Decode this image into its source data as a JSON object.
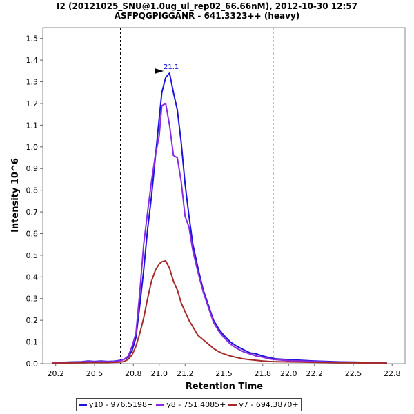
{
  "chart_data": {
    "type": "line",
    "title_line1": "I2 (20121025_SNU@1.0ug_ul_rep02_66.66nM), 2012-10-30 12:57",
    "title_line2": "ASFPQGPIGGANR - 641.3323++ (heavy)",
    "xlabel": "Retention Time",
    "ylabel": "Intensity 10^6",
    "xlim": [
      20.1,
      22.9
    ],
    "ylim": [
      0.0,
      1.55
    ],
    "xticks": [
      20.2,
      20.5,
      20.8,
      21.0,
      21.2,
      21.5,
      21.8,
      22.0,
      22.2,
      22.5,
      22.8
    ],
    "xtick_labels": [
      "20.2",
      "20.5",
      "20.8",
      "21.0",
      "21.2",
      "21.5",
      "21.8",
      "22.0",
      "22.2",
      "22.5",
      "22.8"
    ],
    "yticks": [
      0.0,
      0.1,
      0.2,
      0.3,
      0.4,
      0.5,
      0.6,
      0.7,
      0.8,
      0.9,
      1.0,
      1.1,
      1.2,
      1.3,
      1.4,
      1.5
    ],
    "ytick_labels": [
      "0.0",
      "0.1",
      "0.2",
      "0.3",
      "0.4",
      "0.5",
      "0.6",
      "0.7",
      "0.8",
      "0.9",
      "1.0",
      "1.1",
      "1.2",
      "1.3",
      "1.4",
      "1.5"
    ],
    "integration_boundaries": [
      20.7,
      21.88
    ],
    "peak_annotation": {
      "text": "21.1",
      "x": 21.05,
      "y": 1.34,
      "color": "#0000cc"
    },
    "legend_position": "bottom-center",
    "series": [
      {
        "name": "y10 - 976.5198+",
        "color": "#1c13dc",
        "x": [
          20.17,
          20.25,
          20.3,
          20.35,
          20.4,
          20.45,
          20.5,
          20.55,
          20.6,
          20.65,
          20.7,
          20.73,
          20.76,
          20.79,
          20.82,
          20.85,
          20.88,
          20.91,
          20.94,
          20.97,
          21.0,
          21.02,
          21.05,
          21.08,
          21.11,
          21.14,
          21.17,
          21.2,
          21.23,
          21.26,
          21.3,
          21.34,
          21.38,
          21.42,
          21.46,
          21.5,
          21.55,
          21.6,
          21.65,
          21.7,
          21.75,
          21.8,
          21.85,
          21.9,
          22.0,
          22.1,
          22.2,
          22.3,
          22.4,
          22.5,
          22.6,
          22.7,
          22.76
        ],
        "values": [
          0.005,
          0.006,
          0.007,
          0.008,
          0.009,
          0.012,
          0.01,
          0.012,
          0.01,
          0.011,
          0.015,
          0.02,
          0.03,
          0.06,
          0.12,
          0.27,
          0.43,
          0.62,
          0.77,
          0.95,
          1.13,
          1.25,
          1.32,
          1.34,
          1.25,
          1.17,
          1.02,
          0.83,
          0.68,
          0.55,
          0.44,
          0.34,
          0.27,
          0.2,
          0.16,
          0.13,
          0.1,
          0.08,
          0.065,
          0.05,
          0.045,
          0.035,
          0.028,
          0.022,
          0.018,
          0.015,
          0.012,
          0.01,
          0.008,
          0.007,
          0.006,
          0.005,
          0.005
        ]
      },
      {
        "name": "y8 - 751.4085+",
        "color": "#8a2be2",
        "x": [
          20.17,
          20.25,
          20.3,
          20.35,
          20.4,
          20.45,
          20.5,
          20.55,
          20.6,
          20.65,
          20.7,
          20.73,
          20.76,
          20.79,
          20.82,
          20.85,
          20.88,
          20.91,
          20.94,
          20.97,
          21.0,
          21.02,
          21.05,
          21.08,
          21.11,
          21.14,
          21.17,
          21.2,
          21.23,
          21.26,
          21.3,
          21.34,
          21.38,
          21.42,
          21.46,
          21.5,
          21.55,
          21.6,
          21.65,
          21.7,
          21.75,
          21.8,
          21.85,
          21.9,
          22.0,
          22.1,
          22.2,
          22.3,
          22.4,
          22.5,
          22.6,
          22.7,
          22.76
        ],
        "values": [
          0.004,
          0.005,
          0.006,
          0.007,
          0.008,
          0.01,
          0.009,
          0.01,
          0.009,
          0.01,
          0.013,
          0.02,
          0.035,
          0.08,
          0.14,
          0.33,
          0.55,
          0.7,
          0.84,
          0.96,
          1.05,
          1.19,
          1.2,
          1.1,
          0.96,
          0.95,
          0.84,
          0.68,
          0.63,
          0.52,
          0.42,
          0.33,
          0.26,
          0.19,
          0.15,
          0.12,
          0.09,
          0.07,
          0.055,
          0.045,
          0.035,
          0.03,
          0.022,
          0.018,
          0.014,
          0.012,
          0.01,
          0.008,
          0.007,
          0.006,
          0.005,
          0.004,
          0.004
        ]
      },
      {
        "name": "y7 - 694.3870+",
        "color": "#a52a2a",
        "x": [
          20.17,
          20.25,
          20.3,
          20.35,
          20.4,
          20.45,
          20.5,
          20.55,
          20.6,
          20.65,
          20.7,
          20.73,
          20.76,
          20.79,
          20.82,
          20.85,
          20.88,
          20.91,
          20.94,
          20.97,
          21.0,
          21.02,
          21.05,
          21.08,
          21.11,
          21.14,
          21.17,
          21.2,
          21.23,
          21.26,
          21.3,
          21.34,
          21.38,
          21.42,
          21.46,
          21.5,
          21.55,
          21.6,
          21.65,
          21.7,
          21.75,
          21.8,
          21.85,
          21.9,
          22.0,
          22.1,
          22.2,
          22.3,
          22.4,
          22.5,
          22.6,
          22.7,
          22.76
        ],
        "values": [
          0.002,
          0.003,
          0.003,
          0.004,
          0.004,
          0.005,
          0.005,
          0.005,
          0.005,
          0.006,
          0.007,
          0.01,
          0.02,
          0.04,
          0.08,
          0.14,
          0.21,
          0.3,
          0.38,
          0.43,
          0.46,
          0.47,
          0.475,
          0.44,
          0.38,
          0.34,
          0.28,
          0.24,
          0.2,
          0.17,
          0.13,
          0.11,
          0.09,
          0.07,
          0.055,
          0.045,
          0.035,
          0.028,
          0.022,
          0.018,
          0.015,
          0.012,
          0.01,
          0.009,
          0.008,
          0.007,
          0.006,
          0.005,
          0.004,
          0.004,
          0.003,
          0.003,
          0.003
        ]
      }
    ]
  }
}
